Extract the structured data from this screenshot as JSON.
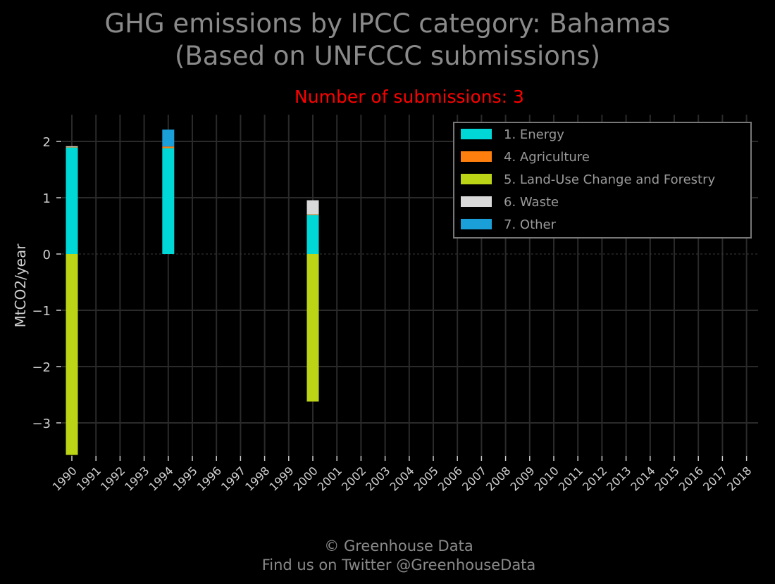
{
  "header": {
    "title_line1": "GHG emissions by IPCC category: Bahamas",
    "title_line2": "(Based on UNFCCC submissions)",
    "subtitle": "Number of submissions: 3"
  },
  "footer": {
    "line1": "© Greenhouse Data",
    "line2": "Find us on Twitter @GreenhouseData"
  },
  "chart_data": {
    "type": "bar",
    "stacked": true,
    "title": "GHG emissions by IPCC category: Bahamas (Based on UNFCCC submissions)",
    "subtitle": "Number of submissions: 3",
    "xlabel": "",
    "ylabel": "MtCO2/year",
    "categories": [
      "1990",
      "1991",
      "1992",
      "1993",
      "1994",
      "1995",
      "1996",
      "1997",
      "1998",
      "1999",
      "2000",
      "2001",
      "2002",
      "2003",
      "2004",
      "2005",
      "2006",
      "2007",
      "2008",
      "2009",
      "2010",
      "2011",
      "2012",
      "2013",
      "2014",
      "2015",
      "2016",
      "2017",
      "2018"
    ],
    "yticks": [
      -3,
      -2,
      -1,
      0,
      1,
      2
    ],
    "ytick_labels": [
      "−3",
      "−2",
      "−1",
      "0",
      "1",
      "2"
    ],
    "ylim": [
      -3.6,
      2.5
    ],
    "grid": true,
    "legend_position": "top-right",
    "series": [
      {
        "name": "1. Energy",
        "color": "#00d8d8",
        "values": [
          1.9,
          null,
          null,
          null,
          1.88,
          null,
          null,
          null,
          null,
          null,
          0.7,
          null,
          null,
          null,
          null,
          null,
          null,
          null,
          null,
          null,
          null,
          null,
          null,
          null,
          null,
          null,
          null,
          null,
          null
        ]
      },
      {
        "name": "4. Agriculture",
        "color": "#ff7f0e",
        "values": [
          0.005,
          null,
          null,
          null,
          0.03,
          null,
          null,
          null,
          null,
          null,
          0.005,
          null,
          null,
          null,
          null,
          null,
          null,
          null,
          null,
          null,
          null,
          null,
          null,
          null,
          null,
          null,
          null,
          null,
          null
        ]
      },
      {
        "name": "5. Land-Use Change and Forestry",
        "color": "#bcd416",
        "values": [
          -3.57,
          null,
          null,
          null,
          null,
          null,
          null,
          null,
          null,
          null,
          -2.62,
          null,
          null,
          null,
          null,
          null,
          null,
          null,
          null,
          null,
          null,
          null,
          null,
          null,
          null,
          null,
          null,
          null,
          null
        ]
      },
      {
        "name": "6. Waste",
        "color": "#d9d9d9",
        "values": [
          0.01,
          null,
          null,
          null,
          null,
          null,
          null,
          null,
          null,
          null,
          0.25,
          null,
          null,
          null,
          null,
          null,
          null,
          null,
          null,
          null,
          null,
          null,
          null,
          null,
          null,
          null,
          null,
          null,
          null
        ]
      },
      {
        "name": "7. Other",
        "color": "#1a9fd9",
        "values": [
          null,
          null,
          null,
          null,
          0.3,
          null,
          null,
          null,
          null,
          null,
          null,
          null,
          null,
          null,
          null,
          null,
          null,
          null,
          null,
          null,
          null,
          null,
          null,
          null,
          null,
          null,
          null,
          null,
          null
        ]
      }
    ]
  }
}
